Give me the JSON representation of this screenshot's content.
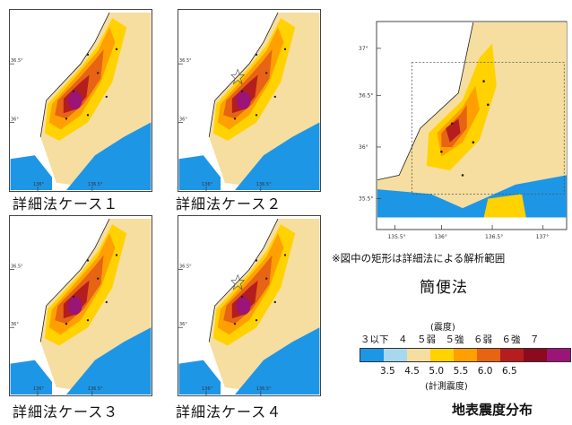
{
  "panels": [
    {
      "caption": "詳細法ケース１",
      "lat_ticks": [
        "36.5°",
        "36°"
      ],
      "lon_ticks": [
        "136°",
        "136.5°"
      ],
      "star": false
    },
    {
      "caption": "詳細法ケース２",
      "lat_ticks": [
        "36.5°",
        "36°"
      ],
      "lon_ticks": [
        "136°",
        "136.5°"
      ],
      "star": true
    },
    {
      "caption": "詳細法ケース３",
      "lat_ticks": [
        "36.5°",
        "36°"
      ],
      "lon_ticks": [
        "136°",
        "136.5°"
      ],
      "star": false
    },
    {
      "caption": "詳細法ケース４",
      "lat_ticks": [
        "36.5°",
        "36°"
      ],
      "lon_ticks": [
        "136°",
        "136.5°"
      ],
      "star": true
    }
  ],
  "simple_map": {
    "lat_ticks": [
      "37°",
      "36.5°",
      "36°",
      "35.5°"
    ],
    "lon_ticks": [
      "135.5°",
      "136°",
      "136.5°",
      "137°"
    ],
    "note": "※図中の矩形は詳細法による解析範囲",
    "caption": "簡便法"
  },
  "legend": {
    "title": "(震度)",
    "top_labels": "３以下　４　５弱　５強　６弱　６強　７",
    "bottom_labels": "3.5　4.5　5.0　5.5　6.0　6.5",
    "subtitle": "(計測震度)",
    "colors": [
      "#1e96e6",
      "#a8d8f0",
      "#f5dea0",
      "#ffd200",
      "#ffa000",
      "#e66414",
      "#b41e1e",
      "#8c0a1e",
      "#9b1478"
    ]
  },
  "figure_title": "地表震度分布"
}
